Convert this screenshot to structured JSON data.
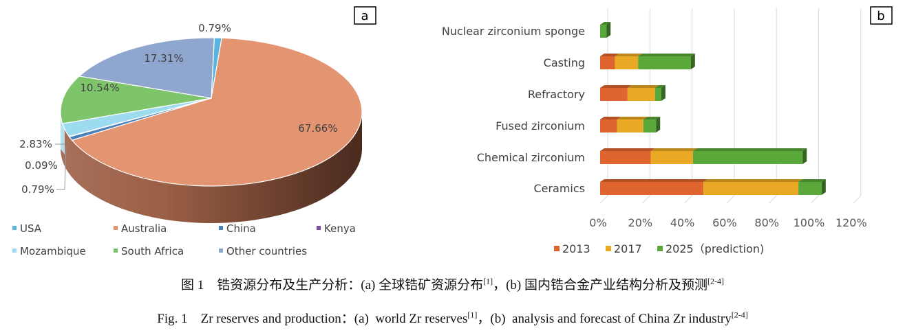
{
  "chart_data": [
    {
      "type": "pie",
      "panel_label": "a",
      "style": "3d",
      "start": "top, clockwise",
      "slices": [
        {
          "name": "USA",
          "value": 0.79,
          "label": "0.79%",
          "color": "#5ab4e0"
        },
        {
          "name": "Australia",
          "value": 67.66,
          "label": "67.66%",
          "color": "#e39572"
        },
        {
          "name": "China",
          "value": 0.79,
          "label": "0.79%",
          "color": "#4a7fb8"
        },
        {
          "name": "Kenya",
          "value": 0.09,
          "label": "0.09%",
          "color": "#7a4fa0"
        },
        {
          "name": "Mozambique",
          "value": 2.83,
          "label": "2.83%",
          "color": "#9ddcf0"
        },
        {
          "name": "South Africa",
          "value": 10.54,
          "label": "10.54%",
          "color": "#7dc46a"
        },
        {
          "name": "Other countries",
          "value": 17.31,
          "label": "17.31%",
          "color": "#8fa6cf"
        }
      ],
      "legend_placement": "bottom"
    },
    {
      "type": "bar",
      "orientation": "horizontal",
      "stacked": true,
      "style": "3d",
      "panel_label": "b",
      "categories": [
        "Nuclear zirconium sponge",
        "Casting",
        "Refractory",
        "Fused zirconium",
        "Chemical zirconium",
        "Ceramics"
      ],
      "series": [
        {
          "name": "2013",
          "color": "#e0642e",
          "values": [
            0,
            7,
            13,
            8,
            24,
            49
          ]
        },
        {
          "name": "2017",
          "color": "#eaa924",
          "values": [
            0,
            11,
            13,
            12.5,
            20,
            45
          ]
        },
        {
          "name": "2025（prediction)",
          "color": "#5aa83a",
          "values": [
            3,
            25,
            3,
            6,
            52,
            11
          ]
        }
      ],
      "xlim": [
        0,
        120
      ],
      "xticks": [
        "0%",
        "20%",
        "40%",
        "60%",
        "80%",
        "100%",
        "120%"
      ],
      "grid": true,
      "legend_placement": "bottom"
    }
  ],
  "caption": {
    "zh_main": "图 1　锆资源分布及生产分析：(a) 全球锆矿资源分布",
    "zh_ref1": "[1]",
    "zh_mid": "，(b) 国内锆合金产业结构分析及预测",
    "zh_ref2": "[2-4]",
    "en_main": "Fig. 1　Zr reserves and production：(a)  world Zr reserves",
    "en_ref1": "[1]",
    "en_mid": "，(b)  analysis and forecast of China Zr industry",
    "en_ref2": "[2-4]"
  }
}
